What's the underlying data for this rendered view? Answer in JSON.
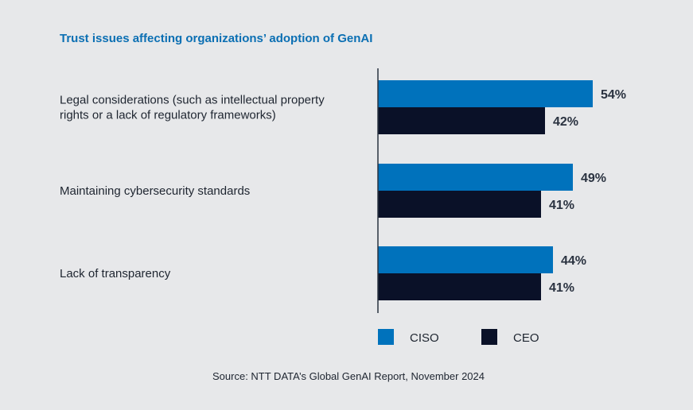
{
  "colors": {
    "ciso": "#0072bc",
    "ceo": "#0a1128",
    "title": "#0b6fb3",
    "axis": "#2a3240"
  },
  "chart_data": {
    "type": "bar",
    "orientation": "horizontal",
    "title": "Trust issues affecting organizations’ adoption of GenAI",
    "categories": [
      [
        "Legal considerations (such as intellectual property",
        "rights or a lack of regulatory frameworks)"
      ],
      [
        "Maintaining cybersecurity standards"
      ],
      [
        "Lack of transparency"
      ]
    ],
    "series": [
      {
        "name": "CISO",
        "values": [
          54,
          49,
          44
        ],
        "labels": [
          "54%",
          "49%",
          "44%"
        ]
      },
      {
        "name": "CEO",
        "values": [
          42,
          41,
          41
        ],
        "labels": [
          "42%",
          "41%",
          "41%"
        ]
      }
    ],
    "xlim": [
      0,
      60
    ],
    "legend": "bottom",
    "grid": false
  },
  "source": "Source: NTT DATA’s Global GenAI Report, November 2024"
}
